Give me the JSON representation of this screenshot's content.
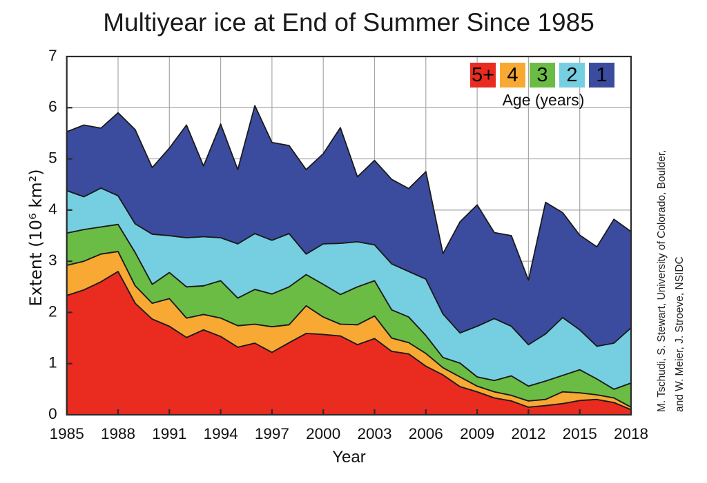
{
  "title": "Multiyear ice at End of Summer Since 1985",
  "credit": {
    "line1": "M. Tschudi, S. Stewart, University of Colorado, Boulder,",
    "line2": "and W. Meier, J. Stroeve, NSIDC"
  },
  "chart_data": {
    "type": "area",
    "stacked": true,
    "title": "Multiyear ice at End of Summer Since 1985",
    "xlabel": "Year",
    "ylabel": "Extent (10⁶ km²)",
    "legend_title": "Age (years)",
    "legend_position": "top-right-inside",
    "grid": true,
    "xlim": [
      1985,
      2018
    ],
    "ylim": [
      0,
      7
    ],
    "x_ticks": [
      1985,
      1988,
      1991,
      1994,
      1997,
      2000,
      2003,
      2006,
      2009,
      2012,
      2015,
      2018
    ],
    "y_ticks": [
      0,
      1,
      2,
      3,
      4,
      5,
      6,
      7
    ],
    "x": [
      1985,
      1986,
      1987,
      1988,
      1989,
      1990,
      1991,
      1992,
      1993,
      1994,
      1995,
      1996,
      1997,
      1998,
      1999,
      2000,
      2001,
      2002,
      2003,
      2004,
      2005,
      2006,
      2007,
      2008,
      2009,
      2010,
      2011,
      2012,
      2013,
      2014,
      2015,
      2016,
      2017,
      2018
    ],
    "series": [
      {
        "name": "5+",
        "color": "#ea2b20",
        "values": [
          2.33,
          2.44,
          2.6,
          2.8,
          2.18,
          1.87,
          1.73,
          1.51,
          1.66,
          1.53,
          1.32,
          1.4,
          1.22,
          1.41,
          1.59,
          1.57,
          1.54,
          1.37,
          1.49,
          1.24,
          1.19,
          0.95,
          0.78,
          0.55,
          0.45,
          0.33,
          0.27,
          0.15,
          0.18,
          0.22,
          0.28,
          0.3,
          0.24,
          0.1
        ]
      },
      {
        "name": "4",
        "color": "#f8a933",
        "values": [
          0.59,
          0.56,
          0.54,
          0.39,
          0.34,
          0.31,
          0.54,
          0.38,
          0.3,
          0.36,
          0.42,
          0.37,
          0.5,
          0.35,
          0.54,
          0.34,
          0.23,
          0.39,
          0.44,
          0.26,
          0.22,
          0.25,
          0.14,
          0.19,
          0.11,
          0.12,
          0.11,
          0.12,
          0.12,
          0.23,
          0.15,
          0.09,
          0.09,
          0.05
        ]
      },
      {
        "name": "3",
        "color": "#6abc45",
        "values": [
          0.63,
          0.62,
          0.53,
          0.53,
          0.65,
          0.37,
          0.51,
          0.61,
          0.56,
          0.73,
          0.54,
          0.68,
          0.64,
          0.74,
          0.61,
          0.64,
          0.58,
          0.74,
          0.69,
          0.55,
          0.5,
          0.35,
          0.2,
          0.27,
          0.18,
          0.22,
          0.38,
          0.29,
          0.36,
          0.32,
          0.45,
          0.31,
          0.17,
          0.47
        ]
      },
      {
        "name": "2",
        "color": "#76cfe1",
        "values": [
          0.83,
          0.64,
          0.76,
          0.56,
          0.56,
          0.98,
          0.72,
          0.96,
          0.96,
          0.84,
          1.06,
          1.09,
          1.05,
          1.04,
          0.4,
          0.79,
          1.0,
          0.88,
          0.7,
          0.9,
          0.89,
          1.1,
          0.85,
          0.59,
          0.99,
          1.21,
          0.97,
          0.81,
          0.92,
          1.13,
          0.78,
          0.64,
          0.9,
          1.08
        ]
      },
      {
        "name": "1",
        "color": "#3b4c9f",
        "values": [
          1.15,
          1.4,
          1.17,
          1.62,
          1.84,
          1.3,
          1.71,
          2.2,
          1.38,
          2.22,
          1.45,
          2.5,
          1.91,
          1.72,
          1.65,
          1.76,
          2.26,
          1.27,
          1.65,
          1.65,
          1.62,
          2.1,
          1.18,
          2.17,
          2.37,
          1.68,
          1.77,
          1.26,
          2.57,
          2.05,
          1.85,
          1.94,
          2.42,
          1.88
        ]
      }
    ]
  },
  "colors": {
    "background": "#ffffff",
    "outline": "#1a1a1a",
    "grid": "#a8a8a8",
    "axis": "#2b2b2b",
    "text": "#111111"
  }
}
